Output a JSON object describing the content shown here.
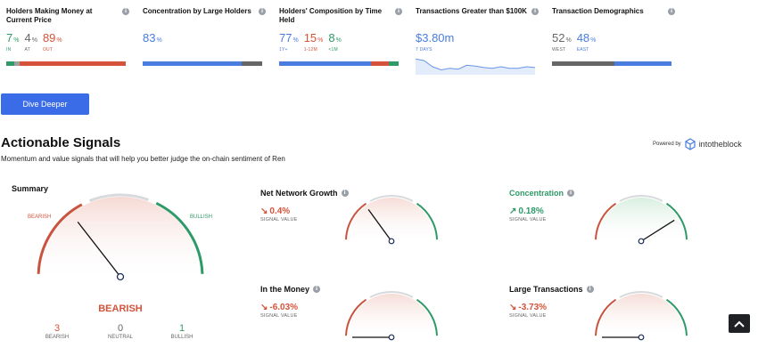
{
  "metrics": [
    {
      "title": "Holders Making Money at Current Price",
      "values": [
        {
          "num": "7",
          "pct": "%",
          "sub": "IN",
          "color": "#2e9a67"
        },
        {
          "num": "4",
          "pct": "%",
          "sub": "AT",
          "color": "#666666"
        },
        {
          "num": "89",
          "pct": "%",
          "sub": "OUT",
          "color": "#d4533a"
        }
      ],
      "bar": [
        {
          "share": 0.07,
          "color": "#2e9a67"
        },
        {
          "share": 0.04,
          "color": "#9e9e9e"
        },
        {
          "share": 0.89,
          "color": "#d4533a"
        }
      ]
    },
    {
      "title": "Concentration by Large Holders",
      "values": [
        {
          "num": "83",
          "pct": "%",
          "sub": "",
          "color": "#4a7de0"
        }
      ],
      "bar": [
        {
          "share": 0.83,
          "color": "#4a7de0"
        },
        {
          "share": 0.17,
          "color": "#666666"
        }
      ]
    },
    {
      "title": "Holders' Composition by Time Held",
      "values": [
        {
          "num": "77",
          "pct": "%",
          "sub": "1Y+",
          "color": "#4a7de0"
        },
        {
          "num": "15",
          "pct": "%",
          "sub": "1-12M",
          "color": "#d4533a"
        },
        {
          "num": "8",
          "pct": "%",
          "sub": "<1M",
          "color": "#2e9a67"
        }
      ],
      "bar": [
        {
          "share": 0.77,
          "color": "#4a7de0"
        },
        {
          "share": 0.15,
          "color": "#d4533a"
        },
        {
          "share": 0.08,
          "color": "#2e9a67"
        }
      ]
    },
    {
      "title": "Transactions Greater than $100K",
      "values": [
        {
          "num": "$3.80m",
          "pct": "",
          "sub": "7 DAYS",
          "color": "#4a7de0"
        }
      ]
    },
    {
      "title": "Transaction Demographics",
      "values": [
        {
          "num": "52",
          "pct": "%",
          "sub": "WEST",
          "color": "#666666"
        },
        {
          "num": "48",
          "pct": "%",
          "sub": "EAST",
          "color": "#4a7de0"
        }
      ],
      "bar": [
        {
          "share": 0.52,
          "color": "#666666"
        },
        {
          "share": 0.48,
          "color": "#4a7de0"
        }
      ]
    }
  ],
  "dive_button": "Dive Deeper",
  "section": {
    "title": "Actionable Signals",
    "subtitle": "Momentum and value signals that will help you better judge the on-chain sentiment of Ren",
    "powered_by": "Powered by",
    "brand": "intotheblock"
  },
  "summary": {
    "title": "Summary",
    "bearish_label": "BEARISH",
    "bullish_label": "BULLISH",
    "verdict": "BEARISH",
    "needle_level": 0.29,
    "counts": [
      {
        "num": "3",
        "label": "BEARISH",
        "color": "#d4533a"
      },
      {
        "num": "0",
        "label": "NEUTRAL",
        "color": "#666666"
      },
      {
        "num": "1",
        "label": "BULLISH",
        "color": "#2e9a67"
      }
    ]
  },
  "signals": [
    {
      "title": "Net Network Growth",
      "value": "0.4%",
      "label": "SIGNAL VALUE",
      "direction": "down",
      "color": "#d4533a",
      "needle_level": 0.3
    },
    {
      "title": "Concentration",
      "value": "0.18%",
      "label": "SIGNAL VALUE",
      "direction": "up",
      "color": "#2e9a67",
      "needle_level": 0.82
    },
    {
      "title": "In the Money",
      "value": "-6.03%",
      "label": "SIGNAL VALUE",
      "direction": "down",
      "color": "#d4533a",
      "needle_level": 0.0
    },
    {
      "title": "Large Transactions",
      "value": "-3.73%",
      "label": "SIGNAL VALUE",
      "direction": "down",
      "color": "#d4533a",
      "needle_level": 0.0
    }
  ],
  "sparkline": [
    60,
    62,
    70,
    74,
    72,
    73,
    68,
    69,
    71,
    72,
    70,
    72,
    72,
    70,
    71
  ],
  "icons": {
    "info": "info-icon",
    "scroll_top": "chevron-up-icon",
    "brand_logo": "cube-logo-icon"
  }
}
